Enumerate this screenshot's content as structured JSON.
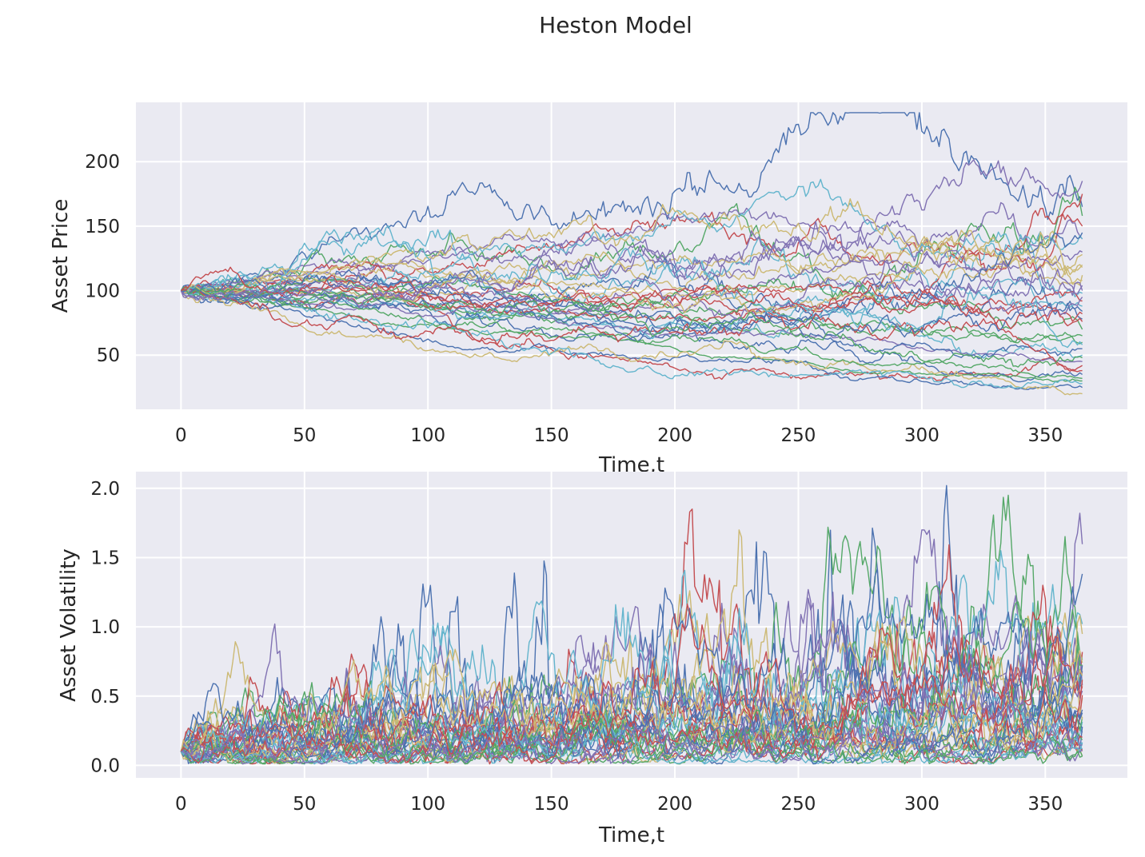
{
  "figure": {
    "title": "Heston Model"
  },
  "chart_data": [
    {
      "type": "line",
      "title": "",
      "xlabel": "Time,t",
      "ylabel": "Asset Price",
      "xlim": [
        -18.25,
        383.25
      ],
      "ylim": [
        8,
        246
      ],
      "xticks": [
        0,
        50,
        100,
        150,
        200,
        250,
        300,
        350
      ],
      "xtick_labels": [
        "0",
        "50",
        "100",
        "150",
        "200",
        "250",
        "300",
        "350"
      ],
      "yticks": [
        50,
        100,
        150,
        200
      ],
      "ytick_labels": [
        "50",
        "100",
        "150",
        "200"
      ],
      "grid": true,
      "legend": "none",
      "n_paths": 40,
      "n_steps": 365,
      "start_value": 100,
      "series_colors": [
        "#4c72b0",
        "#dd8452",
        "#55a868",
        "#c44e52",
        "#8172b3",
        "#937860",
        "#da8bc3",
        "#8c8c8c",
        "#ccb974",
        "#64b5cd"
      ],
      "palette_used": [
        "#4c72b0",
        "#55a868",
        "#c44e52",
        "#8172b3",
        "#ccb974",
        "#64b5cd"
      ],
      "series_final_values": [
        165,
        158,
        150,
        140,
        118,
        98,
        78,
        60,
        42,
        185,
        120,
        88,
        35,
        30,
        175,
        130,
        108,
        50,
        25,
        70,
        92,
        45,
        20,
        140,
        55,
        32,
        82,
        104,
        128,
        28,
        145,
        65,
        38,
        95,
        112,
        58,
        84,
        48,
        76,
        100
      ]
    },
    {
      "type": "line",
      "title": "",
      "xlabel": "Time,t",
      "ylabel": "Asset Volatility",
      "xlim": [
        -18.25,
        383.25
      ],
      "ylim": [
        -0.09,
        2.12
      ],
      "xticks": [
        0,
        50,
        100,
        150,
        200,
        250,
        300,
        350
      ],
      "xtick_labels": [
        "0",
        "50",
        "100",
        "150",
        "200",
        "250",
        "300",
        "350"
      ],
      "yticks": [
        0.0,
        0.5,
        1.0,
        1.5,
        2.0
      ],
      "ytick_labels": [
        "0.0",
        "0.5",
        "1.0",
        "1.5",
        "2.0"
      ],
      "grid": true,
      "legend": "none",
      "n_paths": 40,
      "n_steps": 365,
      "start_value": 0.1,
      "peak_values": [
        2.02,
        1.95,
        1.85,
        1.82,
        1.7,
        1.55,
        1.42,
        1.32,
        1.3,
        1.25,
        1.1,
        0.98
      ]
    }
  ]
}
